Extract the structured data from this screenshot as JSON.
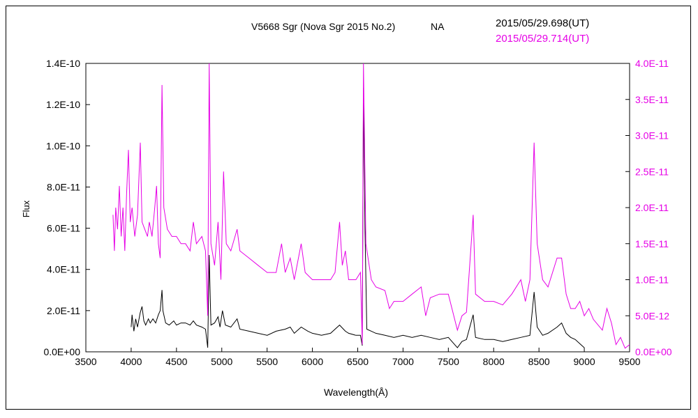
{
  "chart_data": {
    "type": "line",
    "title": "V5668 Sgr (Nova Sgr 2015 No.2)",
    "title_suffix": "NA",
    "xlabel": "Wavelength(Å)",
    "ylabel": "Flux",
    "xlim": [
      3500,
      9500
    ],
    "ylim_left": [
      0,
      1.4e-10
    ],
    "ylim_right": [
      0,
      4e-11
    ],
    "grid": false,
    "x_ticks": [
      "3500",
      "4000",
      "4500",
      "5000",
      "5500",
      "6000",
      "6500",
      "7000",
      "7500",
      "8000",
      "8500",
      "9000",
      "9500"
    ],
    "y_left_ticks": [
      "0.0E+00",
      "2.0E-11",
      "4.0E-11",
      "6.0E-11",
      "8.0E-11",
      "1.0E-10",
      "1.2E-10",
      "1.4E-10"
    ],
    "y_right_ticks": [
      "0.0E+00",
      "5.0E-12",
      "1.0E-11",
      "1.5E-11",
      "2.0E-11",
      "2.5E-11",
      "3.0E-11",
      "3.5E-11",
      "4.0E-11"
    ],
    "colors": {
      "series1": "#000000",
      "series2": "#e600e6"
    },
    "series": [
      {
        "name": "2015/05/29.698(UT)",
        "axis": "left",
        "color": "#000000",
        "points": [
          [
            4000,
            1.2e-11
          ],
          [
            4010,
            1.8e-11
          ],
          [
            4030,
            1e-11
          ],
          [
            4050,
            1.6e-11
          ],
          [
            4070,
            1.2e-11
          ],
          [
            4100,
            1.9e-11
          ],
          [
            4120,
            2.2e-11
          ],
          [
            4140,
            1.5e-11
          ],
          [
            4160,
            1.3e-11
          ],
          [
            4190,
            1.6e-11
          ],
          [
            4210,
            1.4e-11
          ],
          [
            4240,
            1.6e-11
          ],
          [
            4270,
            1.4e-11
          ],
          [
            4300,
            1.8e-11
          ],
          [
            4320,
            2e-11
          ],
          [
            4340,
            3e-11
          ],
          [
            4350,
            2e-11
          ],
          [
            4380,
            1.4e-11
          ],
          [
            4420,
            1.3e-11
          ],
          [
            4470,
            1.5e-11
          ],
          [
            4500,
            1.3e-11
          ],
          [
            4550,
            1.4e-11
          ],
          [
            4600,
            1.4e-11
          ],
          [
            4650,
            1.3e-11
          ],
          [
            4686,
            1.5e-11
          ],
          [
            4720,
            1.3e-11
          ],
          [
            4780,
            1.2e-11
          ],
          [
            4820,
            1.1e-11
          ],
          [
            4845,
            2e-12
          ],
          [
            4861,
            4.7e-11
          ],
          [
            4880,
            1.3e-11
          ],
          [
            4920,
            1.4e-11
          ],
          [
            4959,
            1.7e-11
          ],
          [
            4980,
            1.2e-11
          ],
          [
            5007,
            2e-11
          ],
          [
            5040,
            1.3e-11
          ],
          [
            5100,
            1.2e-11
          ],
          [
            5169,
            1.6e-11
          ],
          [
            5200,
            1.1e-11
          ],
          [
            5300,
            1e-11
          ],
          [
            5400,
            9e-12
          ],
          [
            5500,
            8e-12
          ],
          [
            5600,
            1e-11
          ],
          [
            5700,
            1.1e-11
          ],
          [
            5755,
            1.2e-11
          ],
          [
            5800,
            9e-12
          ],
          [
            5876,
            1.2e-11
          ],
          [
            5950,
            1e-11
          ],
          [
            6000,
            9e-12
          ],
          [
            6100,
            8e-12
          ],
          [
            6200,
            9e-12
          ],
          [
            6300,
            1.3e-11
          ],
          [
            6364,
            1e-11
          ],
          [
            6400,
            9e-12
          ],
          [
            6480,
            8e-12
          ],
          [
            6530,
            8e-12
          ],
          [
            6550,
            3e-12
          ],
          [
            6563,
            1.28e-10
          ],
          [
            6580,
            6e-11
          ],
          [
            6600,
            1.1e-11
          ],
          [
            6650,
            1e-11
          ],
          [
            6700,
            9e-12
          ],
          [
            6800,
            8e-12
          ],
          [
            6900,
            7e-12
          ],
          [
            7000,
            8e-12
          ],
          [
            7100,
            7e-12
          ],
          [
            7200,
            8e-12
          ],
          [
            7300,
            7e-12
          ],
          [
            7400,
            6e-12
          ],
          [
            7500,
            7e-12
          ],
          [
            7600,
            2e-12
          ],
          [
            7650,
            5e-12
          ],
          [
            7700,
            6e-12
          ],
          [
            7774,
            1.8e-11
          ],
          [
            7800,
            7e-12
          ],
          [
            7900,
            6e-12
          ],
          [
            8000,
            6e-12
          ],
          [
            8100,
            5e-12
          ],
          [
            8200,
            6e-12
          ],
          [
            8300,
            7e-12
          ],
          [
            8400,
            8e-12
          ],
          [
            8446,
            2.9e-11
          ],
          [
            8480,
            1.2e-11
          ],
          [
            8540,
            8e-12
          ],
          [
            8600,
            9e-12
          ],
          [
            8700,
            1.2e-11
          ],
          [
            8750,
            1.4e-11
          ],
          [
            8800,
            9e-12
          ],
          [
            8850,
            7e-12
          ],
          [
            8900,
            6e-12
          ],
          [
            8950,
            4e-12
          ],
          [
            9000,
            2e-12
          ]
        ]
      },
      {
        "name": "2015/05/29.714(UT)",
        "axis": "right",
        "color": "#e600e6",
        "points": [
          [
            3800,
            1.9e-11
          ],
          [
            3815,
            1.4e-11
          ],
          [
            3830,
            2e-11
          ],
          [
            3850,
            1.7e-11
          ],
          [
            3870,
            2.3e-11
          ],
          [
            3890,
            1.6e-11
          ],
          [
            3910,
            2e-11
          ],
          [
            3930,
            1.4e-11
          ],
          [
            3950,
            2.2e-11
          ],
          [
            3970,
            2.8e-11
          ],
          [
            3990,
            1.8e-11
          ],
          [
            4010,
            2e-11
          ],
          [
            4040,
            1.6e-11
          ],
          [
            4070,
            1.9e-11
          ],
          [
            4101,
            2.9e-11
          ],
          [
            4120,
            1.8e-11
          ],
          [
            4150,
            1.7e-11
          ],
          [
            4180,
            1.6e-11
          ],
          [
            4200,
            1.8e-11
          ],
          [
            4230,
            1.6e-11
          ],
          [
            4260,
            2e-11
          ],
          [
            4280,
            2.3e-11
          ],
          [
            4300,
            1.5e-11
          ],
          [
            4320,
            1.3e-11
          ],
          [
            4340,
            3.7e-11
          ],
          [
            4360,
            2e-11
          ],
          [
            4400,
            1.7e-11
          ],
          [
            4450,
            1.6e-11
          ],
          [
            4500,
            1.6e-11
          ],
          [
            4550,
            1.5e-11
          ],
          [
            4600,
            1.5e-11
          ],
          [
            4650,
            1.4e-11
          ],
          [
            4686,
            1.8e-11
          ],
          [
            4720,
            1.5e-11
          ],
          [
            4780,
            1.6e-11
          ],
          [
            4820,
            1.4e-11
          ],
          [
            4845,
            5e-12
          ],
          [
            4861,
            4e-11
          ],
          [
            4880,
            1.5e-11
          ],
          [
            4920,
            1.2e-11
          ],
          [
            4959,
            1.8e-11
          ],
          [
            4990,
            1e-11
          ],
          [
            5020,
            2.5e-11
          ],
          [
            5050,
            1.5e-11
          ],
          [
            5100,
            1.4e-11
          ],
          [
            5169,
            1.7e-11
          ],
          [
            5200,
            1.4e-11
          ],
          [
            5300,
            1.3e-11
          ],
          [
            5400,
            1.2e-11
          ],
          [
            5500,
            1.1e-11
          ],
          [
            5600,
            1.1e-11
          ],
          [
            5660,
            1.5e-11
          ],
          [
            5700,
            1.1e-11
          ],
          [
            5755,
            1.3e-11
          ],
          [
            5800,
            1e-11
          ],
          [
            5876,
            1.5e-11
          ],
          [
            5920,
            1.1e-11
          ],
          [
            6000,
            1e-11
          ],
          [
            6100,
            1e-11
          ],
          [
            6200,
            1e-11
          ],
          [
            6250,
            1.1e-11
          ],
          [
            6300,
            1.8e-11
          ],
          [
            6330,
            1.2e-11
          ],
          [
            6364,
            1.4e-11
          ],
          [
            6400,
            1e-11
          ],
          [
            6480,
            1e-11
          ],
          [
            6530,
            1.1e-11
          ],
          [
            6550,
            1e-12
          ],
          [
            6563,
            4e-11
          ],
          [
            6590,
            1.5e-11
          ],
          [
            6650,
            1e-11
          ],
          [
            6700,
            9e-12
          ],
          [
            6800,
            8.5e-12
          ],
          [
            6850,
            6e-12
          ],
          [
            6900,
            7e-12
          ],
          [
            7000,
            7e-12
          ],
          [
            7100,
            8e-12
          ],
          [
            7200,
            9e-12
          ],
          [
            7250,
            5e-12
          ],
          [
            7300,
            7.5e-12
          ],
          [
            7400,
            8e-12
          ],
          [
            7500,
            8e-12
          ],
          [
            7600,
            3e-12
          ],
          [
            7650,
            5e-12
          ],
          [
            7700,
            5.5e-12
          ],
          [
            7774,
            1.9e-11
          ],
          [
            7800,
            8e-12
          ],
          [
            7900,
            7e-12
          ],
          [
            8000,
            7e-12
          ],
          [
            8100,
            6.5e-12
          ],
          [
            8200,
            8e-12
          ],
          [
            8300,
            1e-11
          ],
          [
            8350,
            7e-12
          ],
          [
            8400,
            1e-11
          ],
          [
            8446,
            2.9e-11
          ],
          [
            8480,
            1.5e-11
          ],
          [
            8540,
            1e-11
          ],
          [
            8600,
            9e-12
          ],
          [
            8700,
            1.3e-11
          ],
          [
            8750,
            1.3e-11
          ],
          [
            8800,
            8e-12
          ],
          [
            8850,
            6e-12
          ],
          [
            8900,
            6e-12
          ],
          [
            8950,
            7e-12
          ],
          [
            9000,
            5e-12
          ],
          [
            9050,
            6e-12
          ],
          [
            9100,
            4.5e-12
          ],
          [
            9200,
            3e-12
          ],
          [
            9250,
            6e-12
          ],
          [
            9300,
            4e-12
          ],
          [
            9350,
            1e-12
          ],
          [
            9400,
            2e-12
          ],
          [
            9450,
            5e-13
          ],
          [
            9500,
            1e-12
          ]
        ]
      }
    ]
  }
}
